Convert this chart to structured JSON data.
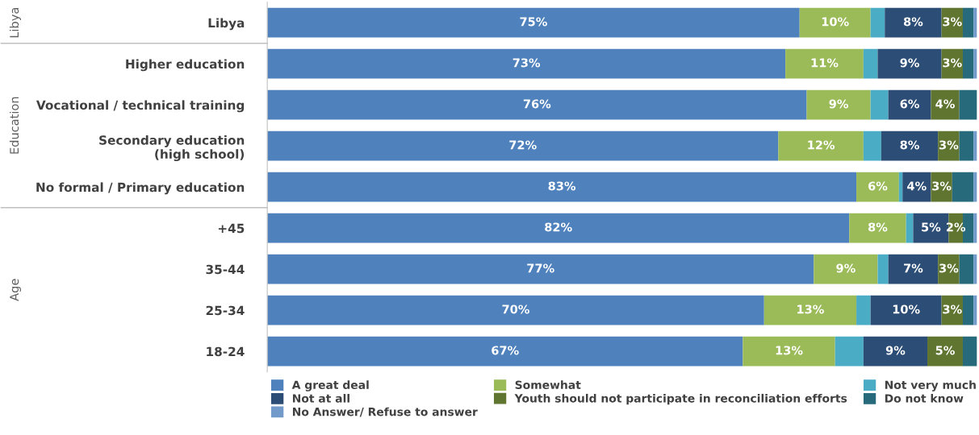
{
  "chart_data": {
    "type": "bar",
    "orientation": "horizontal",
    "stacked": true,
    "legend": "bottom",
    "categories": [
      "Libya",
      "Higher education",
      "Vocational / technical training",
      "Secondary education\n(high school)",
      "No formal / Primary education",
      "+45",
      "35-44",
      "25-34",
      "18-24"
    ],
    "annotations": [
      "Libya",
      "Education",
      "Age"
    ],
    "series": [
      {
        "name": "A great deal",
        "color": "#4f81bd",
        "values": [
          75,
          73,
          76,
          72,
          83,
          82,
          77,
          70,
          67
        ],
        "value_labels": [
          "75%",
          "73%",
          "76%",
          "72%",
          "83%",
          "82%",
          "77%",
          "70%",
          "67%"
        ]
      },
      {
        "name": "Somewhat",
        "color": "#9bbb59",
        "values": [
          10,
          11,
          9,
          12,
          6,
          8,
          9,
          13,
          13
        ],
        "value_labels": [
          "10%",
          "11%",
          "9%",
          "12%",
          "6%",
          "8%",
          "9%",
          "13%",
          "13%"
        ]
      },
      {
        "name": "Not very much",
        "color": "#4bacc6",
        "values": [
          2,
          2,
          2.5,
          2.5,
          0.5,
          1,
          1.5,
          2,
          4
        ]
      },
      {
        "name": "Not at all",
        "color": "#2c4d75",
        "values": [
          8,
          9,
          6,
          8,
          4,
          5,
          7,
          10,
          9
        ],
        "value_labels": [
          "8%",
          "9%",
          "6%",
          "8%",
          "4%",
          "5%",
          "7%",
          "10%",
          "9%"
        ]
      },
      {
        "name": "Youth should not participate in reconciliation efforts",
        "color": "#5f7530",
        "values": [
          3,
          3,
          4,
          3,
          3,
          2,
          3,
          3,
          5
        ],
        "value_labels": [
          "3%",
          "3%",
          "4%",
          "3%",
          "3%",
          "2%",
          "3%",
          "3%",
          "5%"
        ]
      },
      {
        "name": "Do not know",
        "color": "#276a7c",
        "values": [
          1.5,
          1.5,
          2.5,
          2,
          3,
          1.5,
          2,
          1.5,
          2
        ]
      },
      {
        "name": "No Answer/ Refuse to answer",
        "color": "#729aca",
        "values": [
          0.5,
          0.5,
          0,
          0.5,
          0.5,
          0.5,
          0.5,
          0.5,
          0
        ]
      }
    ]
  }
}
